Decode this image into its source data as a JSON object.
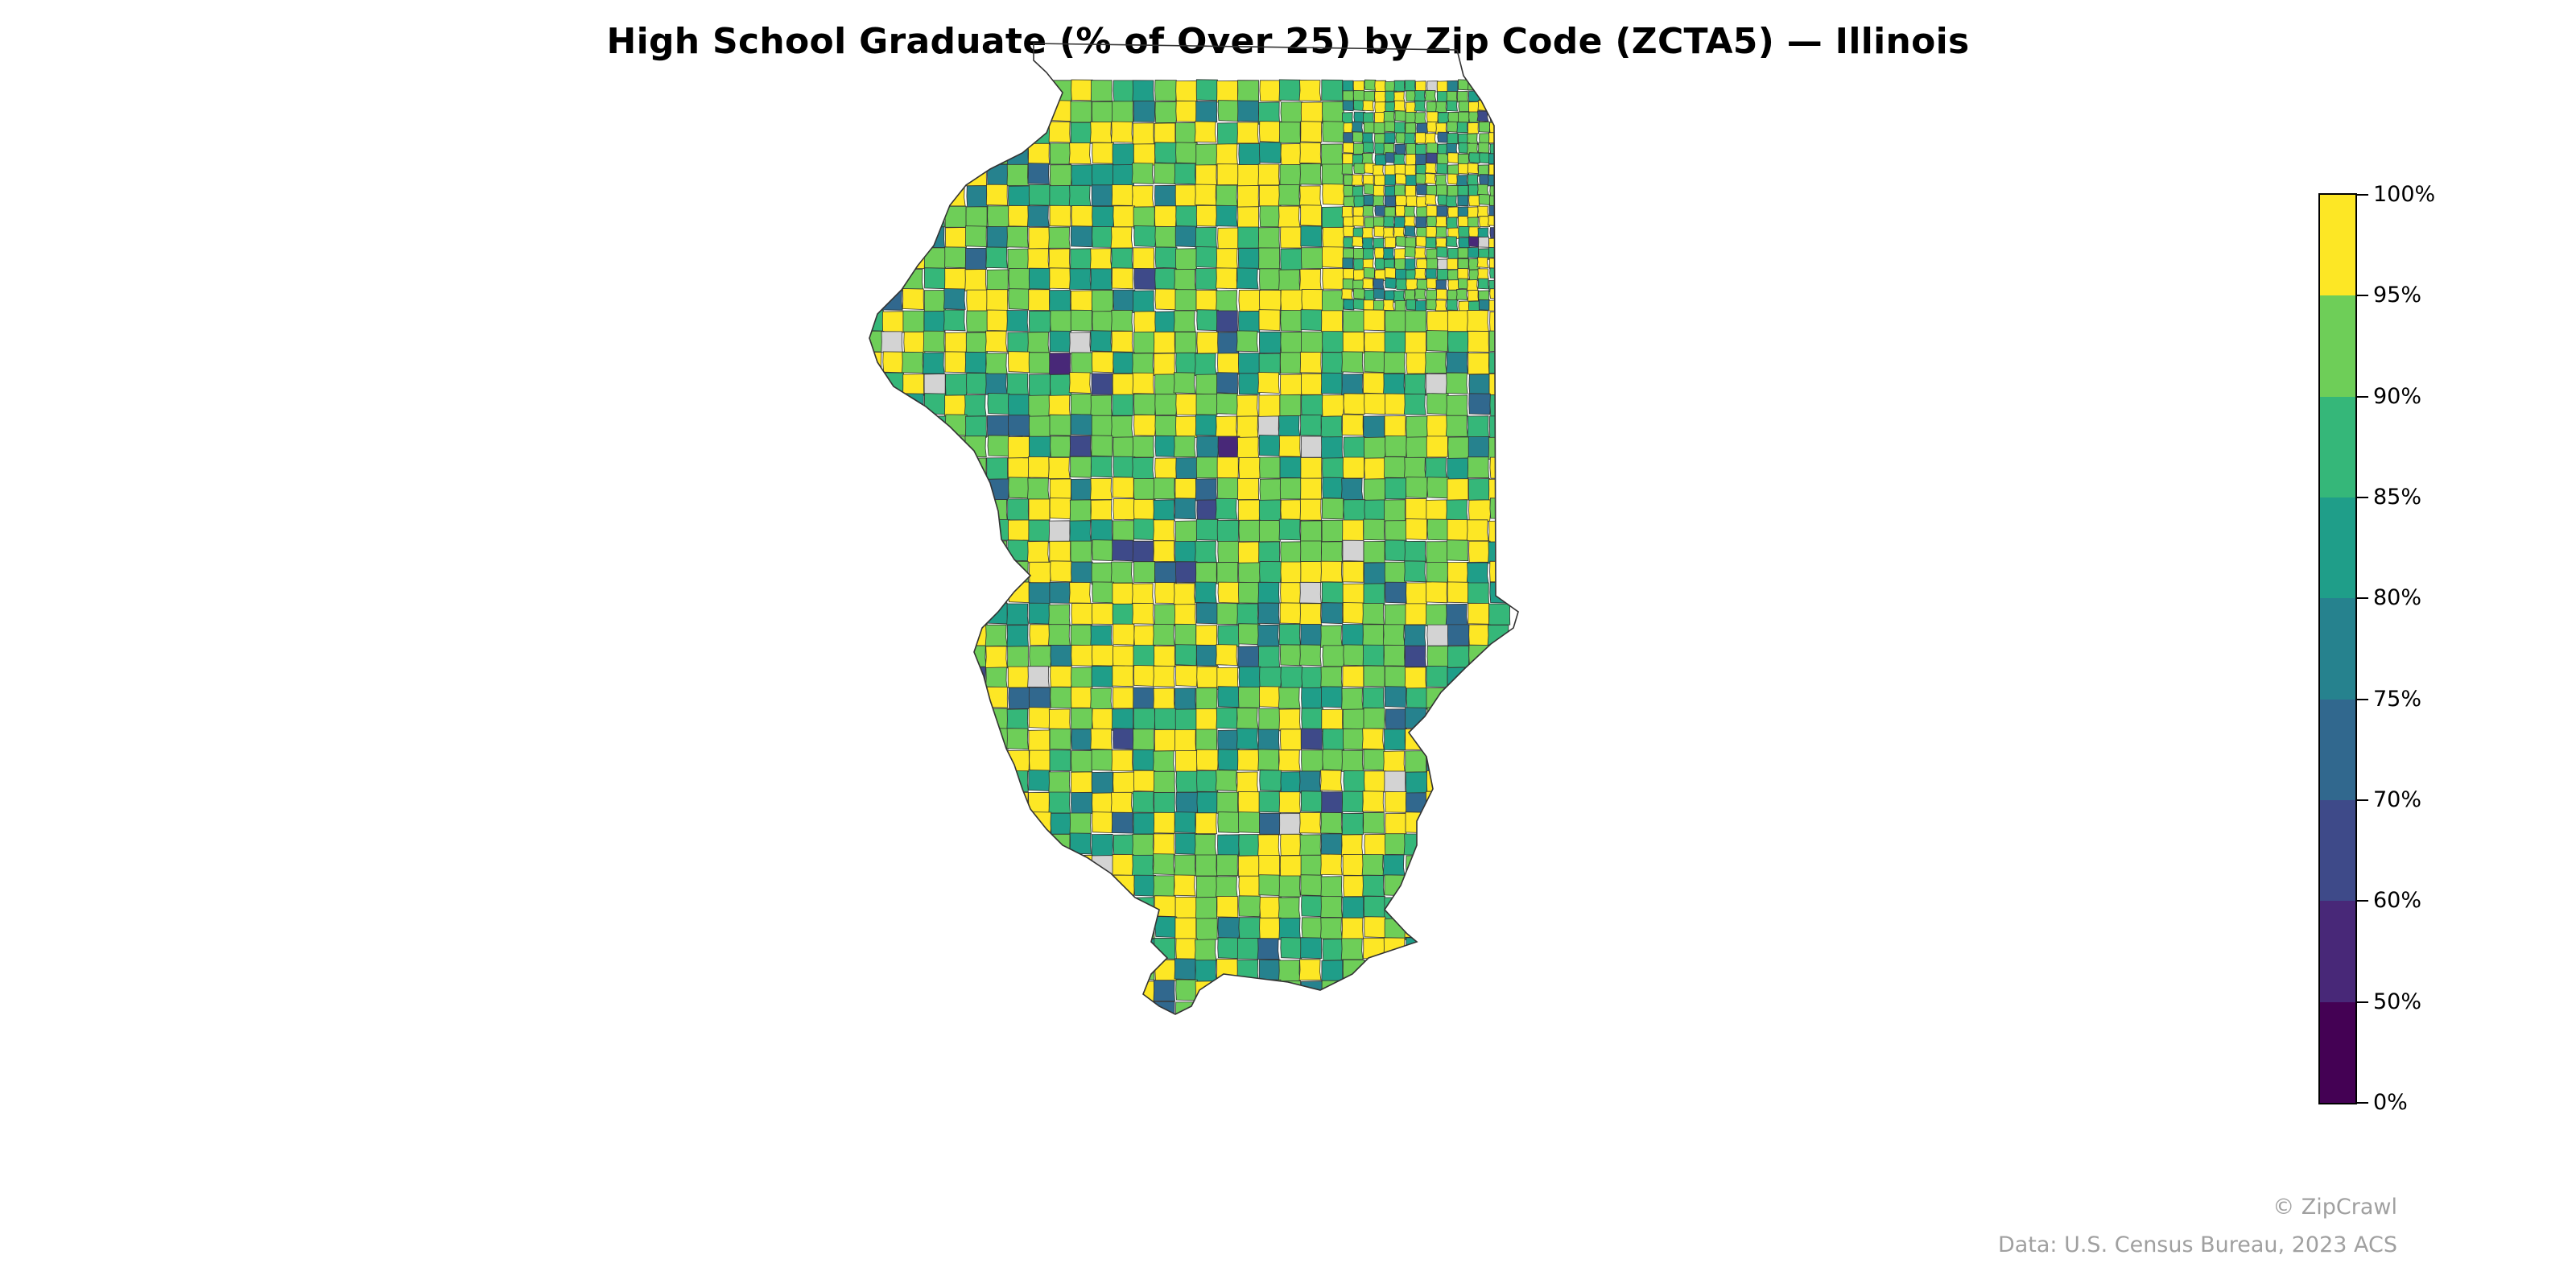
{
  "title": "High School Graduate (% of Over 25) by Zip Code (ZCTA5) — Illinois",
  "map": {
    "region": "Illinois",
    "geography": "ZCTA5",
    "missing_color": "#d3d3d3",
    "border_color": "#333333"
  },
  "colorbar": {
    "bands": [
      {
        "from": 0,
        "to": 50,
        "color": "#440154"
      },
      {
        "from": 50,
        "to": 60,
        "color": "#482878"
      },
      {
        "from": 60,
        "to": 70,
        "color": "#3e4a89"
      },
      {
        "from": 70,
        "to": 75,
        "color": "#31688e"
      },
      {
        "from": 75,
        "to": 80,
        "color": "#26828e"
      },
      {
        "from": 80,
        "to": 85,
        "color": "#1f9e89"
      },
      {
        "from": 85,
        "to": 90,
        "color": "#35b779"
      },
      {
        "from": 90,
        "to": 95,
        "color": "#6ece58"
      },
      {
        "from": 95,
        "to": 100,
        "color": "#fde725"
      }
    ],
    "tick_labels": [
      "0%",
      "50%",
      "60%",
      "70%",
      "75%",
      "80%",
      "85%",
      "90%",
      "95%",
      "100%"
    ]
  },
  "credits": {
    "copyright": "© ZipCrawl",
    "source": "Data: U.S. Census Bureau, 2023 ACS"
  }
}
